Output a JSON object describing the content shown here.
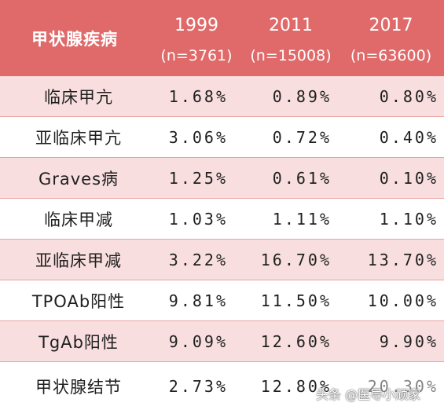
{
  "header": {
    "name_col": "甲状腺疾病",
    "years": [
      {
        "year": "1999",
        "n": "(n=3761)"
      },
      {
        "year": "2011",
        "n": "(n=15008)"
      },
      {
        "year": "2017",
        "n": "(n=63600)"
      }
    ]
  },
  "rows": [
    {
      "name": "临床甲亢",
      "v1": "1.68%",
      "v2": "0.89%",
      "v3": "0.80%"
    },
    {
      "name": "亚临床甲亢",
      "v1": "3.06%",
      "v2": "0.72%",
      "v3": "0.40%"
    },
    {
      "name": "Graves病",
      "v1": "1.25%",
      "v2": "0.61%",
      "v3": "0.10%"
    },
    {
      "name": "临床甲减",
      "v1": "1.03%",
      "v2": "1.11%",
      "v3": "1.10%"
    },
    {
      "name": "亚临床甲减",
      "v1": "3.22%",
      "v2": "16.70%",
      "v3": "13.70%"
    },
    {
      "name": "TPOAb阳性",
      "v1": "9.81%",
      "v2": "11.50%",
      "v3": "10.00%"
    },
    {
      "name": "TgAb阳性",
      "v1": "9.09%",
      "v2": "12.60%",
      "v3": "9.90%"
    },
    {
      "name": "甲状腺结节",
      "v1": "2.73%",
      "v2": "12.80%",
      "v3": "20.30%"
    }
  ],
  "watermark": "头条 @医导小顽家",
  "colors": {
    "header_bg": "#e06a6a",
    "stripe": "#f8dede",
    "border": "#e9a3a3"
  }
}
